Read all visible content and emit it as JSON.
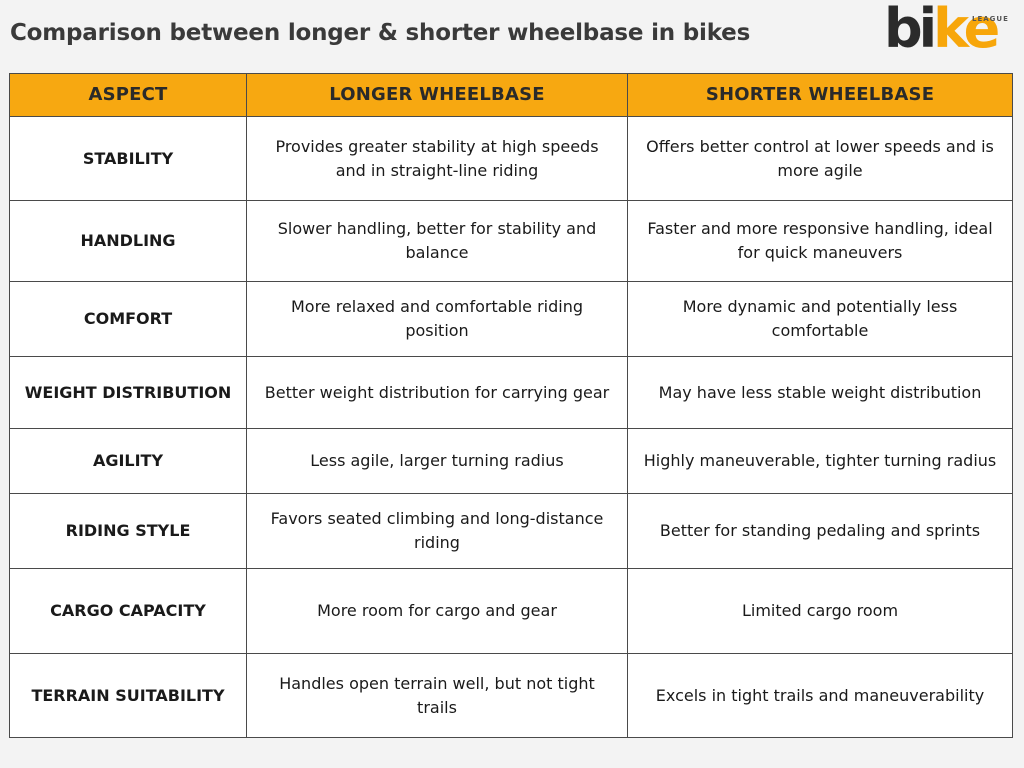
{
  "title": "Comparison between longer & shorter wheelbase in bikes",
  "logo": {
    "text_dark": "bi",
    "text_orange": "ke",
    "subtext": "LEAGUE"
  },
  "table": {
    "headers": [
      "ASPECT",
      "LONGER WHEELBASE",
      "SHORTER WHEELBASE"
    ],
    "rows": [
      {
        "aspect": "STABILITY",
        "longer": "Provides greater stability at high speeds and in straight-line riding",
        "shorter": "Offers better control at lower speeds and is more agile"
      },
      {
        "aspect": "HANDLING",
        "longer": "Slower handling, better for stability and balance",
        "shorter": "Faster and more responsive handling, ideal for quick maneuvers"
      },
      {
        "aspect": "COMFORT",
        "longer": "More relaxed and comfortable riding position",
        "shorter": "More dynamic and potentially less comfortable"
      },
      {
        "aspect": "WEIGHT DISTRIBUTION",
        "longer": "Better weight distribution for carrying gear",
        "shorter": "May have less stable weight distribution"
      },
      {
        "aspect": "AGILITY",
        "longer": "Less agile, larger turning radius",
        "shorter": "Highly maneuverable, tighter turning radius"
      },
      {
        "aspect": "RIDING STYLE",
        "longer": "Favors seated climbing and long-distance riding",
        "shorter": "Better for standing pedaling and sprints"
      },
      {
        "aspect": "CARGO CAPACITY",
        "longer": "More room for cargo and gear",
        "shorter": "Limited cargo room"
      },
      {
        "aspect": "TERRAIN SUITABILITY",
        "longer": "Handles open terrain well, but not tight trails",
        "shorter": "Excels in tight trails and maneuverability"
      }
    ]
  },
  "colors": {
    "header_bg": "#f7a811",
    "logo_orange": "#f7a60a",
    "border": "#4a4a4a"
  }
}
